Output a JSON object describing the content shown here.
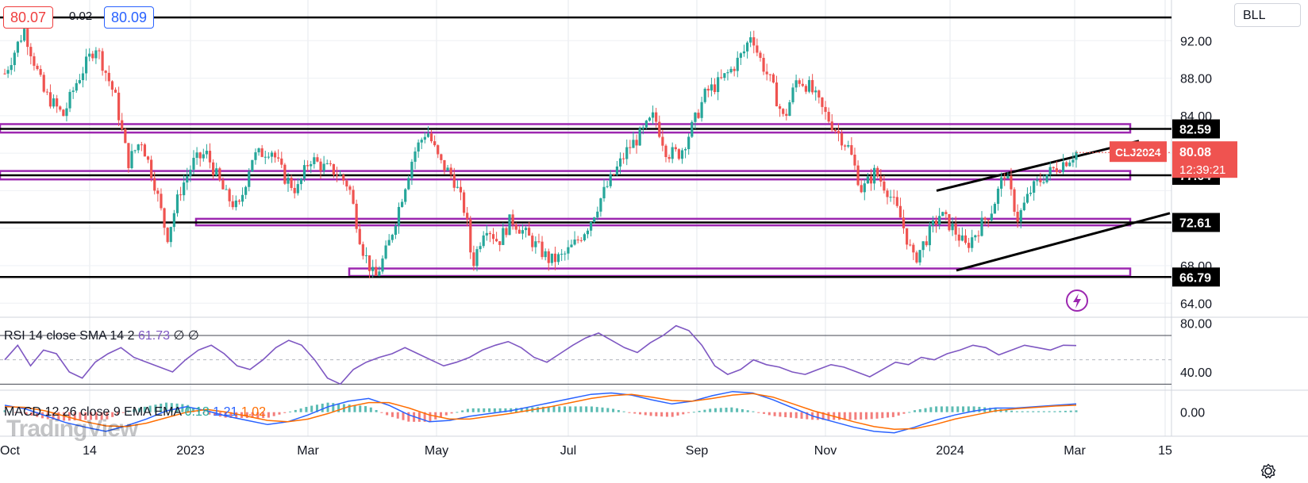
{
  "header": {
    "bid": "80.07",
    "spread": "0.02",
    "ask": "80.09",
    "symbol_button": "BLL"
  },
  "watermark": "TradingView",
  "colors": {
    "up": "#26a69a",
    "down": "#ef5350",
    "zone": "#9c27b0",
    "rsi": "#7e57c2",
    "macd": "#2962ff",
    "signal": "#ff6d00",
    "price_tag": "#ef5350"
  },
  "icons": [
    "lightning-icon",
    "settings-icon"
  ],
  "chart_data": [
    {
      "type": "candlestick",
      "symbol": "CLJ2024",
      "last_price": "80.08",
      "countdown": "12:39:21",
      "ylim": [
        62.5,
        96
      ],
      "y_ticks": [
        "92.00",
        "88.00",
        "84.00",
        "68.00",
        "64.00"
      ],
      "x_ticks": [
        "Oct",
        "14",
        "2023",
        "Mar",
        "May",
        "Jul",
        "Sep",
        "Nov",
        "2024",
        "Mar",
        "15"
      ],
      "key_levels": [
        {
          "label": "82.59",
          "value": 82.59
        },
        {
          "label": "77.64",
          "value": 77.64
        },
        {
          "label": "72.61",
          "value": 72.61
        },
        {
          "label": "66.79",
          "value": 66.79
        }
      ],
      "close_path": [
        [
          0,
          88.5
        ],
        [
          3,
          93.2
        ],
        [
          6,
          86.5
        ],
        [
          9,
          84.0
        ],
        [
          11,
          87.5
        ],
        [
          14,
          91.5
        ],
        [
          17,
          86.0
        ],
        [
          19,
          79.0
        ],
        [
          21,
          81.5
        ],
        [
          23,
          77.0
        ],
        [
          25,
          71.0
        ],
        [
          27,
          76.0
        ],
        [
          29,
          79.0
        ],
        [
          31,
          80.0
        ],
        [
          34,
          75.5
        ],
        [
          36,
          74.0
        ],
        [
          38,
          79.5
        ],
        [
          41,
          80.5
        ],
        [
          43,
          77.5
        ],
        [
          45,
          76.0
        ],
        [
          47,
          79.5
        ],
        [
          49,
          78.5
        ],
        [
          51,
          78.0
        ],
        [
          53,
          76.5
        ],
        [
          55,
          70.0
        ],
        [
          57,
          66.5
        ],
        [
          59,
          70.0
        ],
        [
          61,
          75.0
        ],
        [
          63,
          80.0
        ],
        [
          65,
          82.5
        ],
        [
          67,
          79.0
        ],
        [
          69,
          77.5
        ],
        [
          71,
          73.5
        ],
        [
          72,
          68.0
        ],
        [
          74,
          72.5
        ],
        [
          76,
          70.5
        ],
        [
          78,
          73.0
        ],
        [
          80,
          71.5
        ],
        [
          82,
          70.0
        ],
        [
          84,
          68.5
        ],
        [
          86,
          69.0
        ],
        [
          88,
          70.5
        ],
        [
          90,
          72.5
        ],
        [
          92,
          75.5
        ],
        [
          94,
          78.0
        ],
        [
          96,
          80.5
        ],
        [
          98,
          82.0
        ],
        [
          100,
          84.0
        ],
        [
          102,
          80.0
        ],
        [
          104,
          80.0
        ],
        [
          106,
          83.0
        ],
        [
          108,
          86.5
        ],
        [
          110,
          87.5
        ],
        [
          112,
          89.0
        ],
        [
          114,
          91.0
        ],
        [
          115,
          93.0
        ],
        [
          116,
          90.5
        ],
        [
          118,
          87.5
        ],
        [
          120,
          83.5
        ],
        [
          122,
          88.0
        ],
        [
          124,
          87.0
        ],
        [
          126,
          84.5
        ],
        [
          128,
          82.5
        ],
        [
          130,
          80.5
        ],
        [
          132,
          76.0
        ],
        [
          134,
          78.0
        ],
        [
          136,
          76.0
        ],
        [
          138,
          73.0
        ],
        [
          140,
          68.5
        ],
        [
          142,
          71.0
        ],
        [
          144,
          73.5
        ],
        [
          146,
          72.0
        ],
        [
          148,
          70.0
        ],
        [
          150,
          72.0
        ],
        [
          152,
          74.0
        ],
        [
          154,
          78.0
        ],
        [
          156,
          73.0
        ],
        [
          158,
          76.0
        ],
        [
          160,
          77.5
        ],
        [
          162,
          78.5
        ],
        [
          164,
          79.5
        ],
        [
          165,
          80.1
        ]
      ],
      "range_months": 17.5
    },
    {
      "type": "line",
      "title": "RSI 14 close SMA 14 2",
      "value_label": "61.73",
      "extra_labels": [
        "∅",
        "∅"
      ],
      "ylim": [
        25,
        85
      ],
      "y_ticks": [
        "80.00",
        "40.00"
      ],
      "levels": [
        70,
        50,
        30
      ],
      "values": [
        50,
        62,
        45,
        58,
        55,
        40,
        35,
        48,
        55,
        60,
        52,
        48,
        44,
        40,
        50,
        58,
        62,
        55,
        45,
        42,
        50,
        60,
        66,
        62,
        50,
        35,
        30,
        42,
        48,
        52,
        55,
        60,
        55,
        50,
        45,
        48,
        52,
        58,
        62,
        65,
        60,
        52,
        48,
        55,
        62,
        68,
        72,
        66,
        60,
        56,
        64,
        70,
        78,
        74,
        62,
        45,
        38,
        42,
        50,
        46,
        44,
        40,
        38,
        42,
        46,
        44,
        40,
        36,
        42,
        48,
        46,
        52,
        50,
        55,
        58,
        62,
        60,
        54,
        58,
        62,
        60,
        58,
        62,
        61.73
      ]
    },
    {
      "type": "line+histogram",
      "title": "MACD 12 26 close 9 EMA EMA",
      "values_labels": [
        "0.18",
        "1.21",
        "1.02"
      ],
      "ylim": [
        -3.5,
        3.2
      ],
      "y_ticks": [
        "0.00"
      ],
      "macd": [
        1.0,
        0.5,
        -0.5,
        -1.5,
        -2.2,
        -2.8,
        -2.0,
        -1.0,
        0.2,
        0.8,
        0.2,
        -0.6,
        -1.2,
        -1.8,
        -1.4,
        -0.4,
        0.8,
        1.6,
        2.0,
        1.0,
        -0.4,
        -1.4,
        -1.2,
        -0.6,
        -0.2,
        0.2,
        0.8,
        1.4,
        2.0,
        2.6,
        2.8,
        2.5,
        1.8,
        1.2,
        1.6,
        2.4,
        3.0,
        2.8,
        1.8,
        0.6,
        -0.6,
        -1.4,
        -2.2,
        -2.8,
        -3.0,
        -2.2,
        -1.2,
        -0.4,
        0.2,
        0.6,
        0.6,
        0.8,
        1.0,
        1.21
      ],
      "signal": [
        0.8,
        0.7,
        0.2,
        -0.6,
        -1.4,
        -2.0,
        -2.1,
        -1.6,
        -0.8,
        0.0,
        0.4,
        0.0,
        -0.6,
        -1.2,
        -1.4,
        -1.0,
        -0.2,
        0.8,
        1.4,
        1.4,
        0.6,
        -0.4,
        -1.0,
        -1.0,
        -0.6,
        -0.2,
        0.3,
        0.8,
        1.4,
        2.0,
        2.4,
        2.6,
        2.2,
        1.7,
        1.6,
        2.0,
        2.5,
        2.7,
        2.2,
        1.2,
        0.2,
        -0.6,
        -1.4,
        -2.1,
        -2.5,
        -2.4,
        -1.8,
        -1.0,
        -0.4,
        0.2,
        0.5,
        0.7,
        0.9,
        1.02
      ]
    }
  ]
}
